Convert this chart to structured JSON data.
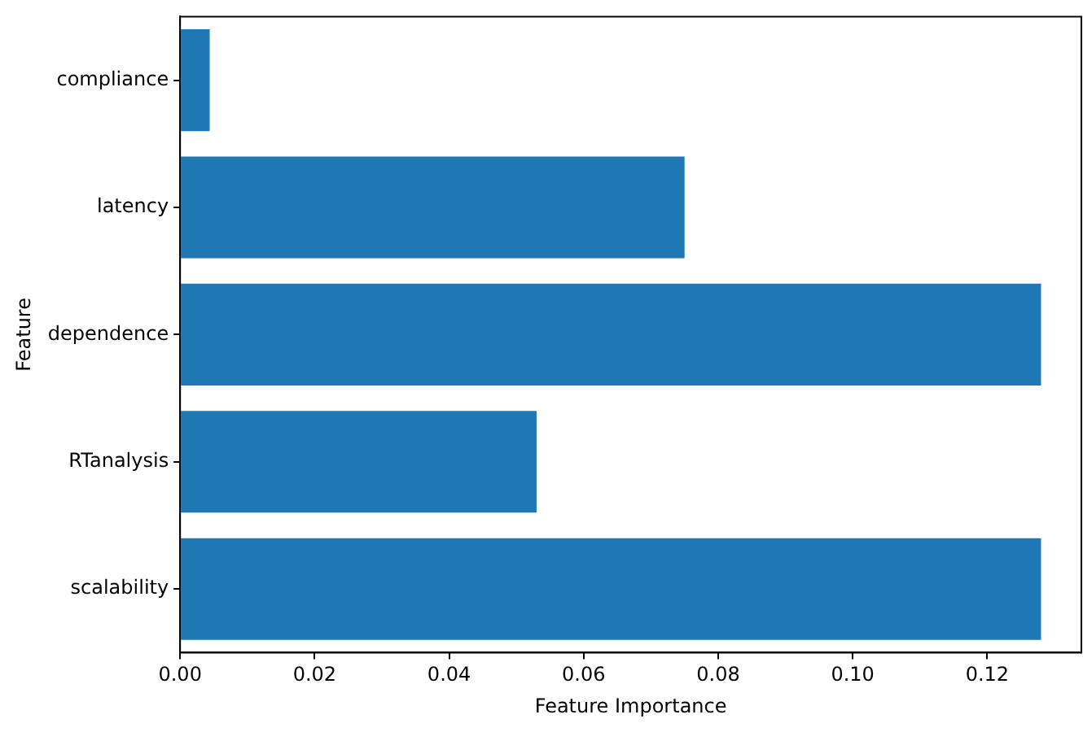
{
  "chart_data": {
    "type": "bar",
    "orientation": "horizontal",
    "xlabel": "Feature Importance",
    "ylabel": "Feature",
    "categories": [
      "compliance",
      "latency",
      "dependence",
      "RTanalysis",
      "scalability"
    ],
    "values": [
      0.0044,
      0.075,
      0.128,
      0.053,
      0.128
    ],
    "color": "#1f77b4",
    "xlim": [
      0,
      0.134
    ],
    "xticks": [
      {
        "value": 0,
        "label": "0.00"
      },
      {
        "value": 0.02,
        "label": "0.02"
      },
      {
        "value": 0.04,
        "label": "0.04"
      },
      {
        "value": 0.06,
        "label": "0.06"
      },
      {
        "value": 0.08,
        "label": "0.08"
      },
      {
        "value": 0.1,
        "label": "0.10"
      },
      {
        "value": 0.12,
        "label": "0.12"
      }
    ],
    "grid": false,
    "legend": false
  }
}
